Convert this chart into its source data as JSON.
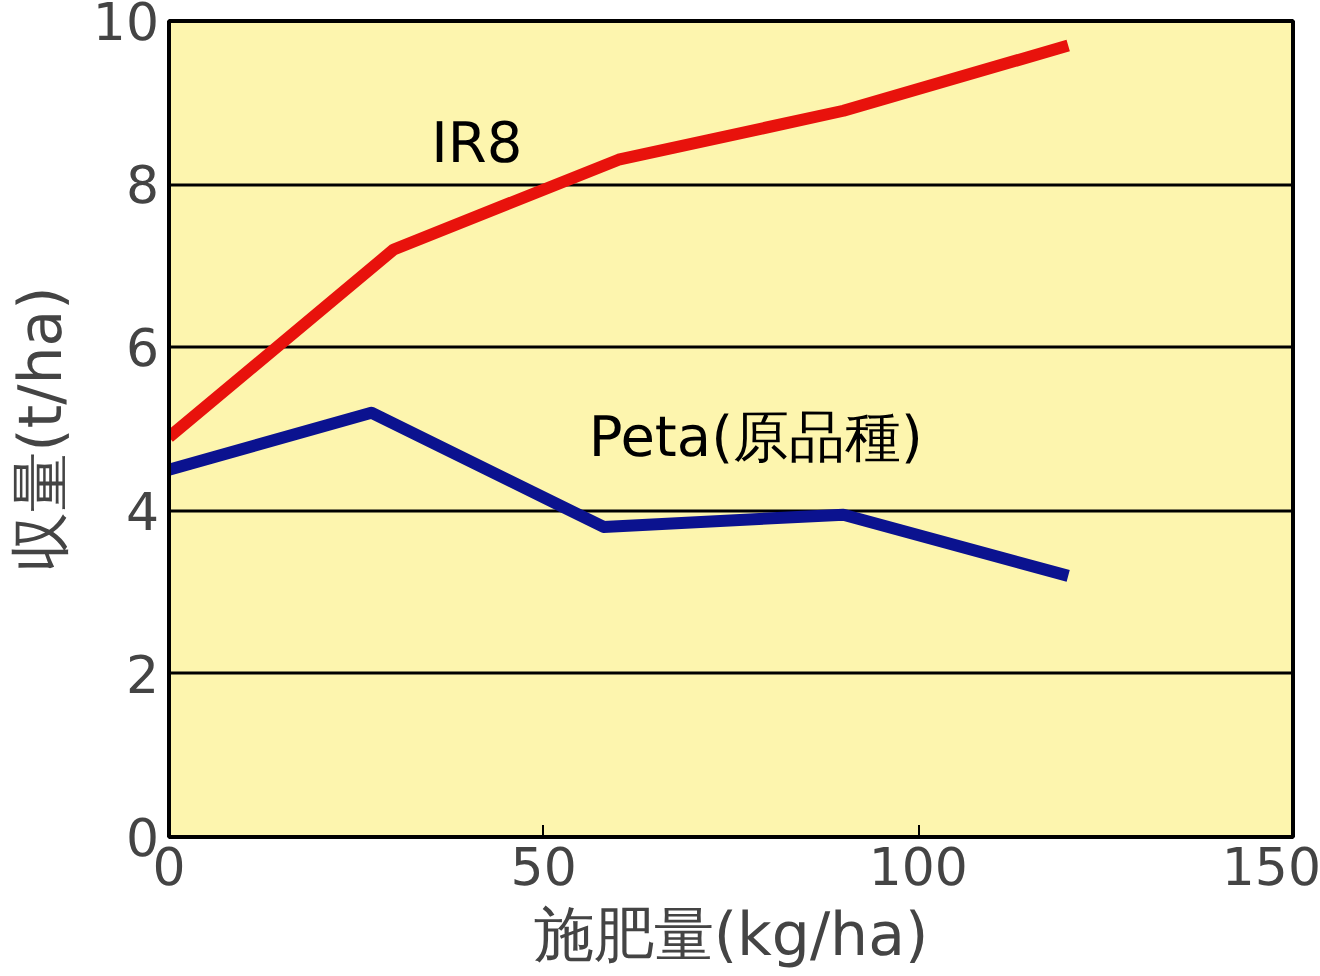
{
  "chart_data": {
    "type": "line",
    "xlabel": "施肥量(kg/ha)",
    "ylabel": "収量(t/ha)",
    "xlim": [
      0,
      150
    ],
    "xticks": [
      0,
      50,
      100,
      150
    ],
    "ylim": [
      0,
      10
    ],
    "yticks": [
      0,
      2,
      4,
      6,
      8,
      10
    ],
    "grid": "y",
    "marker": "none",
    "line_style": "solid",
    "series": [
      {
        "name": "IR8",
        "color": "#e8120c",
        "x": [
          0,
          30,
          60,
          90,
          120
        ],
        "values": [
          4.9,
          7.2,
          8.3,
          8.9,
          9.7
        ]
      },
      {
        "name": "Peta(原品種)",
        "color": "#0b128f",
        "x": [
          0,
          27,
          58,
          90,
          120
        ],
        "values": [
          4.5,
          5.2,
          3.8,
          3.95,
          3.2
        ]
      }
    ]
  }
}
